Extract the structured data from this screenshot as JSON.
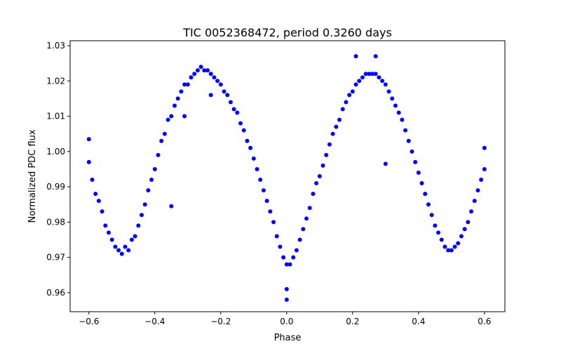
{
  "chart_data": {
    "type": "scatter",
    "title": "TIC 0052368472, period 0.3260 days",
    "xlabel": "Phase",
    "ylabel": "Normalized PDC flux",
    "xlim": [
      -0.657,
      0.662
    ],
    "ylim": [
      0.9546,
      1.0314
    ],
    "xticks": [
      -0.6,
      -0.4,
      -0.2,
      0.0,
      0.2,
      0.4,
      0.6
    ],
    "xtick_labels": [
      "−0.6",
      "−0.4",
      "−0.2",
      "0.0",
      "0.2",
      "0.4",
      "0.6"
    ],
    "yticks": [
      0.96,
      0.97,
      0.98,
      0.99,
      1.0,
      1.01,
      1.02,
      1.03
    ],
    "ytick_labels": [
      "0.96",
      "0.97",
      "0.98",
      "0.99",
      "1.00",
      "1.01",
      "1.02",
      "1.03"
    ],
    "grid": false,
    "marker_color": "#0000ff",
    "points": [
      [
        -0.6,
        0.997
      ],
      [
        -0.59,
        0.992
      ],
      [
        -0.58,
        0.988
      ],
      [
        -0.57,
        0.986
      ],
      [
        -0.56,
        0.983
      ],
      [
        -0.55,
        0.979
      ],
      [
        -0.54,
        0.977
      ],
      [
        -0.53,
        0.975
      ],
      [
        -0.52,
        0.973
      ],
      [
        -0.51,
        0.972
      ],
      [
        -0.5,
        0.971
      ],
      [
        -0.49,
        0.973
      ],
      [
        -0.48,
        0.972
      ],
      [
        -0.47,
        0.975
      ],
      [
        -0.46,
        0.976
      ],
      [
        -0.45,
        0.979
      ],
      [
        -0.44,
        0.982
      ],
      [
        -0.43,
        0.985
      ],
      [
        -0.42,
        0.989
      ],
      [
        -0.41,
        0.992
      ],
      [
        -0.4,
        0.995
      ],
      [
        -0.39,
        0.999
      ],
      [
        -0.38,
        1.003
      ],
      [
        -0.37,
        1.005
      ],
      [
        -0.36,
        1.009
      ],
      [
        -0.35,
        1.01
      ],
      [
        -0.34,
        1.013
      ],
      [
        -0.33,
        1.015
      ],
      [
        -0.32,
        1.017
      ],
      [
        -0.31,
        1.019
      ],
      [
        -0.3,
        1.019
      ],
      [
        -0.29,
        1.021
      ],
      [
        -0.28,
        1.022
      ],
      [
        -0.27,
        1.023
      ],
      [
        -0.26,
        1.024
      ],
      [
        -0.25,
        1.023
      ],
      [
        -0.24,
        1.023
      ],
      [
        -0.23,
        1.022
      ],
      [
        -0.22,
        1.021
      ],
      [
        -0.21,
        1.02
      ],
      [
        -0.2,
        1.019
      ],
      [
        -0.19,
        1.017
      ],
      [
        -0.18,
        1.016
      ],
      [
        -0.17,
        1.014
      ],
      [
        -0.16,
        1.012
      ],
      [
        -0.15,
        1.011
      ],
      [
        -0.14,
        1.008
      ],
      [
        -0.13,
        1.006
      ],
      [
        -0.12,
        1.003
      ],
      [
        -0.11,
        1.001
      ],
      [
        -0.1,
        0.998
      ],
      [
        -0.09,
        0.995
      ],
      [
        -0.08,
        0.992
      ],
      [
        -0.07,
        0.989
      ],
      [
        -0.06,
        0.986
      ],
      [
        -0.05,
        0.983
      ],
      [
        -0.04,
        0.98
      ],
      [
        -0.03,
        0.976
      ],
      [
        -0.02,
        0.973
      ],
      [
        -0.01,
        0.97
      ],
      [
        0.0,
        0.968
      ],
      [
        0.01,
        0.968
      ],
      [
        0.02,
        0.97
      ],
      [
        0.03,
        0.972
      ],
      [
        0.04,
        0.975
      ],
      [
        0.05,
        0.978
      ],
      [
        0.06,
        0.981
      ],
      [
        0.07,
        0.984
      ],
      [
        0.08,
        0.988
      ],
      [
        0.09,
        0.991
      ],
      [
        0.1,
        0.993
      ],
      [
        0.11,
        0.996
      ],
      [
        0.12,
        0.999
      ],
      [
        0.13,
        1.002
      ],
      [
        0.14,
        1.005
      ],
      [
        0.15,
        1.007
      ],
      [
        0.16,
        1.009
      ],
      [
        0.17,
        1.012
      ],
      [
        0.18,
        1.014
      ],
      [
        0.19,
        1.016
      ],
      [
        0.2,
        1.017
      ],
      [
        0.21,
        1.019
      ],
      [
        0.22,
        1.02
      ],
      [
        0.23,
        1.021
      ],
      [
        0.24,
        1.022
      ],
      [
        0.25,
        1.022
      ],
      [
        0.26,
        1.022
      ],
      [
        0.27,
        1.022
      ],
      [
        0.28,
        1.021
      ],
      [
        0.29,
        1.02
      ],
      [
        0.3,
        1.019
      ],
      [
        0.31,
        1.017
      ],
      [
        0.32,
        1.015
      ],
      [
        0.33,
        1.013
      ],
      [
        0.34,
        1.011
      ],
      [
        0.35,
        1.009
      ],
      [
        0.36,
        1.006
      ],
      [
        0.37,
        1.003
      ],
      [
        0.38,
        1.0
      ],
      [
        0.39,
        0.997
      ],
      [
        0.4,
        0.994
      ],
      [
        0.41,
        0.991
      ],
      [
        0.42,
        0.988
      ],
      [
        0.43,
        0.985
      ],
      [
        0.44,
        0.982
      ],
      [
        0.45,
        0.979
      ],
      [
        0.46,
        0.977
      ],
      [
        0.47,
        0.975
      ],
      [
        0.48,
        0.973
      ],
      [
        0.49,
        0.972
      ],
      [
        0.5,
        0.972
      ],
      [
        0.51,
        0.973
      ],
      [
        0.52,
        0.974
      ],
      [
        0.53,
        0.976
      ],
      [
        0.54,
        0.978
      ],
      [
        0.55,
        0.98
      ],
      [
        0.56,
        0.983
      ],
      [
        0.57,
        0.986
      ],
      [
        0.58,
        0.989
      ],
      [
        0.59,
        0.992
      ],
      [
        0.6,
        0.995
      ],
      [
        -0.35,
        0.9845
      ],
      [
        -0.23,
        1.016
      ],
      [
        -0.31,
        1.01
      ],
      [
        0.0,
        0.958
      ],
      [
        0.0,
        0.961
      ],
      [
        0.21,
        1.027
      ],
      [
        0.27,
        1.027
      ],
      [
        0.3,
        0.9965
      ],
      [
        -0.6,
        1.0035
      ],
      [
        0.6,
        1.001
      ]
    ]
  }
}
